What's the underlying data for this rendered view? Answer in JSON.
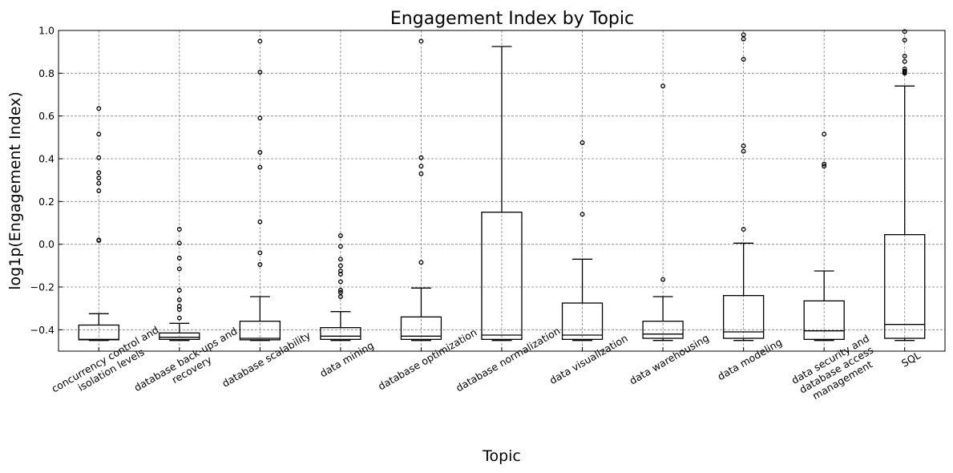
{
  "chart_data": {
    "type": "box",
    "title": "Engagement Index by Topic",
    "xlabel": "Topic",
    "ylabel": "log1p(Engagement Index)",
    "ylim": [
      -0.5,
      1.0
    ],
    "yticks": [
      -0.4,
      -0.2,
      0.0,
      0.2,
      0.4,
      0.6,
      0.8,
      1.0
    ],
    "ytick_labels": [
      "−0.4",
      "−0.2",
      "0.0",
      "0.2",
      "0.4",
      "0.6",
      "0.8",
      "1.0"
    ],
    "grid": true,
    "categories": [
      [
        "concurrency control and",
        "isolation levels"
      ],
      [
        "database back-ups and",
        "recovery"
      ],
      [
        "database scalability"
      ],
      [
        "data mining"
      ],
      [
        "database optimization"
      ],
      [
        "database normalization"
      ],
      [
        "data visualization"
      ],
      [
        "data warehousing"
      ],
      [
        "data modeling"
      ],
      [
        "data security and",
        "database access",
        "management"
      ],
      [
        "SQL"
      ]
    ],
    "boxes": [
      {
        "whisker_low": -0.45,
        "q1": -0.447,
        "median": -0.445,
        "q3": -0.378,
        "whisker_high": -0.325,
        "fliers": [
          0.635,
          0.515,
          0.405,
          0.335,
          0.31,
          0.285,
          0.25,
          0.02,
          0.018
        ]
      },
      {
        "whisker_low": -0.45,
        "q1": -0.445,
        "median": -0.435,
        "q3": -0.415,
        "whisker_high": -0.37,
        "fliers": [
          0.07,
          0.005,
          -0.065,
          -0.115,
          -0.215,
          -0.26,
          -0.29,
          -0.305,
          -0.345
        ]
      },
      {
        "whisker_low": -0.45,
        "q1": -0.447,
        "median": -0.44,
        "q3": -0.36,
        "whisker_high": -0.245,
        "fliers": [
          0.95,
          0.805,
          0.59,
          0.43,
          0.36,
          0.105,
          -0.04,
          -0.095
        ]
      },
      {
        "whisker_low": -0.45,
        "q1": -0.445,
        "median": -0.43,
        "q3": -0.39,
        "whisker_high": -0.315,
        "fliers": [
          0.04,
          -0.01,
          -0.07,
          -0.1,
          -0.125,
          -0.14,
          -0.175,
          -0.215,
          -0.225,
          -0.245
        ]
      },
      {
        "whisker_low": -0.45,
        "q1": -0.445,
        "median": -0.43,
        "q3": -0.34,
        "whisker_high": -0.205,
        "fliers": [
          0.95,
          0.405,
          0.365,
          0.33,
          -0.085
        ]
      },
      {
        "whisker_low": -0.45,
        "q1": -0.445,
        "median": -0.425,
        "q3": 0.15,
        "whisker_high": 0.925,
        "fliers": []
      },
      {
        "whisker_low": -0.45,
        "q1": -0.445,
        "median": -0.425,
        "q3": -0.275,
        "whisker_high": -0.07,
        "fliers": [
          0.475,
          0.14
        ]
      },
      {
        "whisker_low": -0.45,
        "q1": -0.44,
        "median": -0.42,
        "q3": -0.36,
        "whisker_high": -0.245,
        "fliers": [
          0.74,
          -0.165
        ]
      },
      {
        "whisker_low": -0.45,
        "q1": -0.44,
        "median": -0.41,
        "q3": -0.24,
        "whisker_high": 0.005,
        "fliers": [
          0.98,
          0.96,
          0.865,
          0.46,
          0.435,
          0.07
        ]
      },
      {
        "whisker_low": -0.45,
        "q1": -0.445,
        "median": -0.405,
        "q3": -0.265,
        "whisker_high": -0.125,
        "fliers": [
          0.515,
          0.375,
          0.365
        ]
      },
      {
        "whisker_low": -0.45,
        "q1": -0.44,
        "median": -0.375,
        "q3": 0.045,
        "whisker_high": 0.74,
        "fliers": [
          0.995,
          0.955,
          0.88,
          0.855,
          0.82,
          0.81,
          0.805,
          0.8
        ]
      }
    ]
  }
}
